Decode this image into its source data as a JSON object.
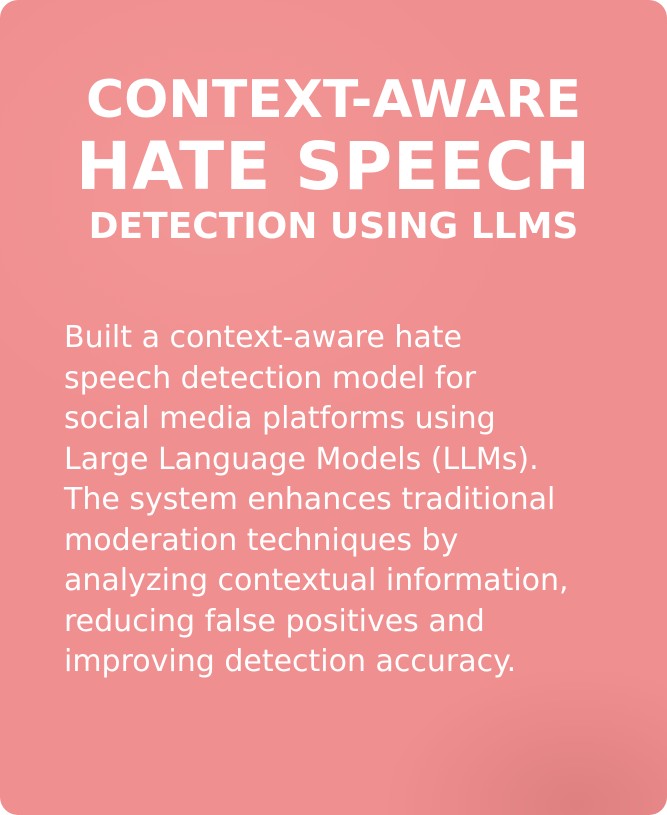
{
  "card": {
    "background_color": "#f08f8f",
    "title_lines": [
      "CONTEXT-AWARE",
      "HATE SPEECH",
      "DETECTION USING LLMS"
    ],
    "description_lines": [
      "Built a context-aware hate",
      "speech detection model for",
      "social media platforms using",
      "Large Language Models (LLMs).",
      "The system enhances traditional",
      "moderation techniques by",
      "analyzing contextual information,",
      "reducing false positives and",
      "improving detection accuracy."
    ]
  }
}
